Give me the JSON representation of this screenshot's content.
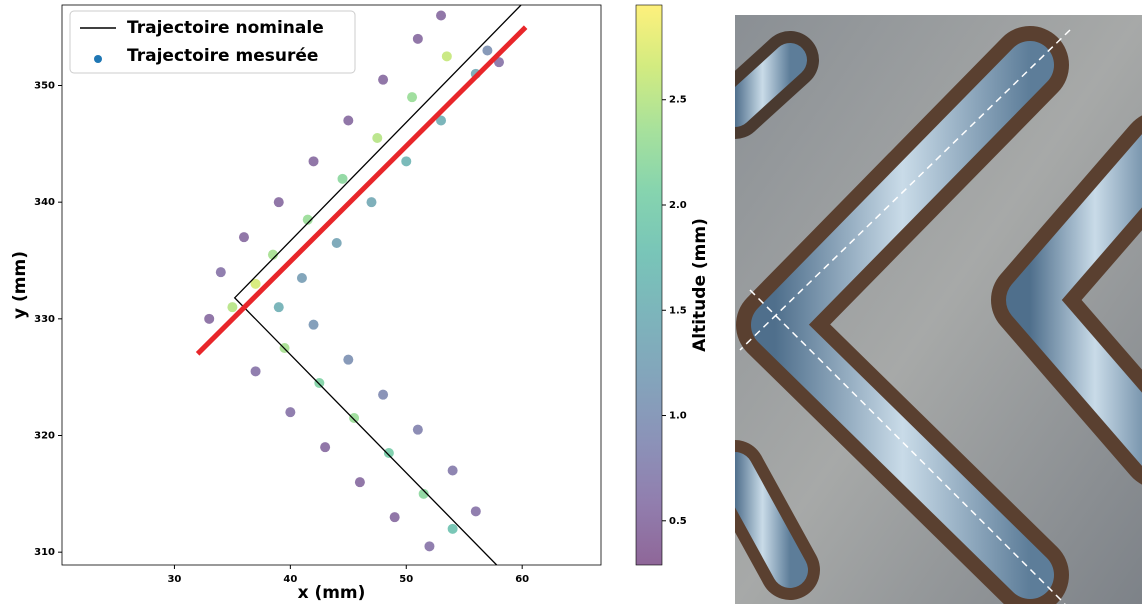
{
  "chart_data": {
    "type": "scatter",
    "xlabel": "x (mm)",
    "ylabel": "y (mm)",
    "xlim": [
      20.3,
      66.8
    ],
    "ylim": [
      308.9,
      356.9
    ],
    "xticks": [
      30,
      40,
      50,
      60
    ],
    "yticks": [
      310,
      320,
      330,
      340,
      350
    ],
    "legend": "upper left",
    "series": [
      {
        "name": "Trajectoire nominale",
        "type": "line",
        "color": "#000000",
        "x": [
          57.8,
          35.2,
          59.9
        ],
        "y": [
          308.9,
          331.8,
          356.9
        ]
      },
      {
        "name": "Trajectoire mesurée",
        "type": "scatter",
        "color": "#1f77b4",
        "x": [
          52,
          54,
          56,
          49,
          51.5,
          54,
          46,
          48.5,
          51,
          43,
          45.5,
          48,
          40,
          42.5,
          45,
          37,
          39.5,
          42,
          33,
          35,
          37,
          39,
          34,
          36,
          38.5,
          41,
          39,
          41.5,
          44,
          42,
          44.5,
          47,
          45,
          47.5,
          50,
          48,
          50.5,
          53,
          51,
          53.5,
          56,
          53,
          57,
          58
        ],
        "y": [
          310.5,
          312,
          313.5,
          313,
          315,
          317,
          316,
          318.5,
          320.5,
          319,
          321.5,
          323.5,
          322,
          324.5,
          326.5,
          325.5,
          327.5,
          329.5,
          330,
          331,
          333,
          331,
          334,
          337,
          335.5,
          333.5,
          340,
          338.5,
          336.5,
          343.5,
          342,
          340,
          347,
          345.5,
          343.5,
          350.5,
          349,
          347,
          354,
          352.5,
          351,
          356,
          353,
          352
        ],
        "altitude": [
          0.6,
          1.8,
          0.6,
          0.5,
          2.2,
          0.7,
          0.5,
          2.0,
          0.8,
          0.5,
          2.3,
          0.9,
          0.6,
          2.1,
          1.0,
          0.6,
          2.4,
          1.1,
          0.5,
          2.5,
          2.7,
          1.5,
          0.6,
          0.5,
          2.4,
          1.2,
          0.5,
          2.3,
          1.3,
          0.5,
          2.2,
          1.4,
          0.5,
          2.5,
          1.6,
          0.5,
          2.3,
          1.5,
          0.5,
          2.6,
          1.4,
          0.5,
          1.0,
          0.6
        ]
      },
      {
        "type": "line",
        "color": "#e8262a",
        "x": [
          32,
          60.3
        ],
        "y": [
          327,
          355
        ]
      }
    ],
    "colorbar": {
      "label": "Altitude (mm)",
      "colormap": "viridis",
      "lim": [
        0.29,
        2.95
      ],
      "ticks": [
        0.5,
        {
          "value": 1,
          "label": "1.0"
        },
        1.5,
        {
          "value": 2,
          "label": "2.0"
        },
        2.5
      ]
    }
  }
}
